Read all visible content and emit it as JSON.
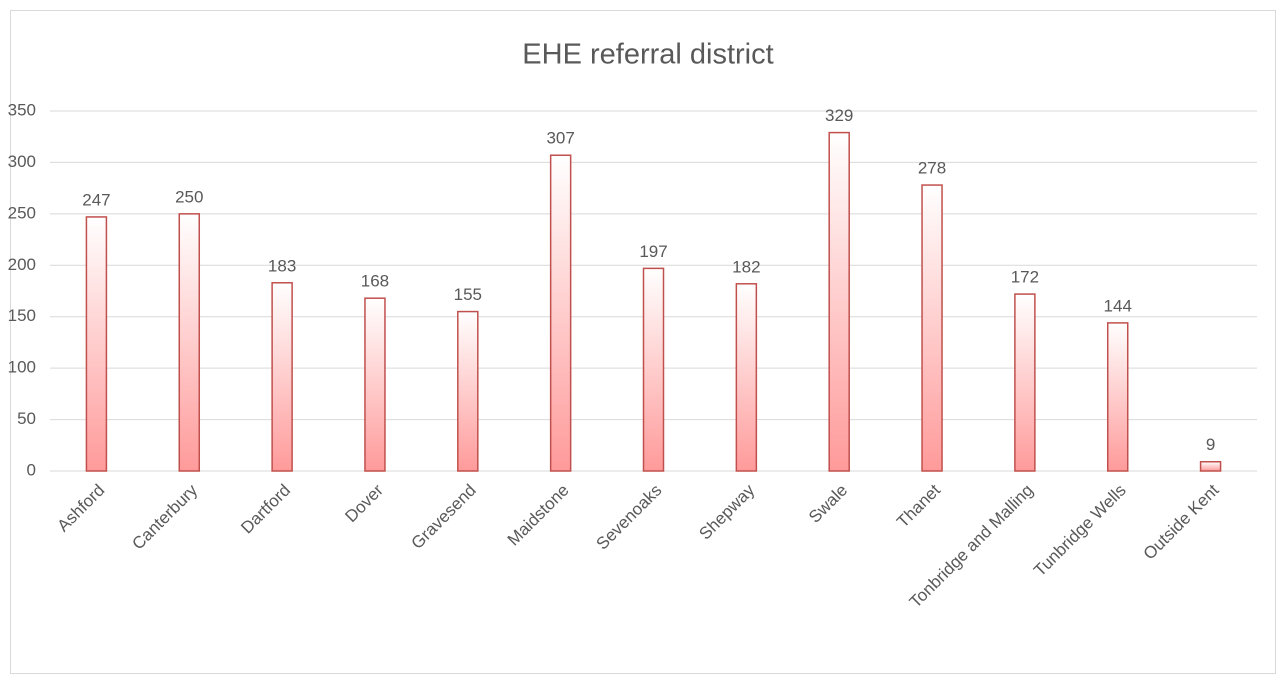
{
  "chart_data": {
    "type": "bar",
    "title": "EHE referral district",
    "categories": [
      "Ashford",
      "Canterbury",
      "Dartford",
      "Dover",
      "Gravesend",
      "Maidstone",
      "Sevenoaks",
      "Shepway",
      "Swale",
      "Thanet",
      "Tonbridge and Malling",
      "Tunbridge Wells",
      "Outside Kent"
    ],
    "values": [
      247,
      250,
      183,
      168,
      155,
      307,
      197,
      182,
      329,
      278,
      172,
      144,
      9
    ],
    "color": "#ff9a9a",
    "edgecolor": "#c0504d",
    "ylim": [
      0,
      350
    ],
    "yticks": [
      0,
      50,
      100,
      150,
      200,
      250,
      300,
      350
    ],
    "grid": true
  }
}
